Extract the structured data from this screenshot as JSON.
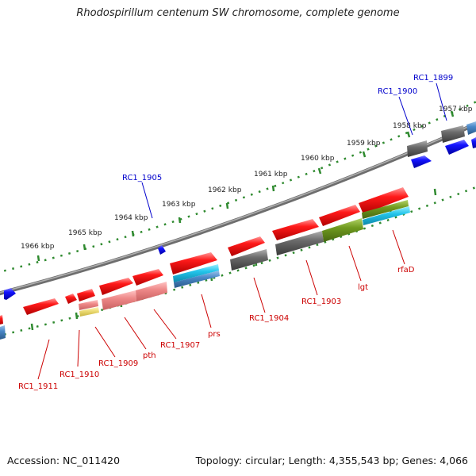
{
  "title": "Rhodospirillum centenum SW chromosome, complete genome",
  "footer": {
    "accession": "Accession: NC_011420",
    "topology": "Topology: circular; Length: 4,355,543 bp; Genes: 4,066"
  },
  "colors": {
    "backbone": "#8a8a8a",
    "tick": "#2f8a2f",
    "forward_label": "#0000cc",
    "reverse_label": "#cc0000",
    "gene_red": "#ee1111",
    "gene_blue": "#1111ee",
    "gene_gray": "#666666",
    "gene_pink": "#ee8a8a",
    "gene_cyan": "#22bbdd",
    "gene_steel": "#3f7fbf",
    "gene_olive": "#6f9a1f",
    "gene_yellow": "#eedd77"
  },
  "scale_labels": [
    "1966 kbp",
    "1965 kbp",
    "1964 kbp",
    "1963 kbp",
    "1962 kbp",
    "1961 kbp",
    "1960 kbp",
    "1959 kbp",
    "1958 kbp",
    "1957 kbp"
  ],
  "forward_gene_labels": [
    "RC1_1905",
    "RC1_1900",
    "RC1_1899"
  ],
  "reverse_gene_labels": [
    "RC1_1911",
    "RC1_1910",
    "RC1_1909",
    "pth",
    "RC1_1907",
    "prs",
    "RC1_1904",
    "RC1_1903",
    "lgt",
    "rfaD"
  ]
}
